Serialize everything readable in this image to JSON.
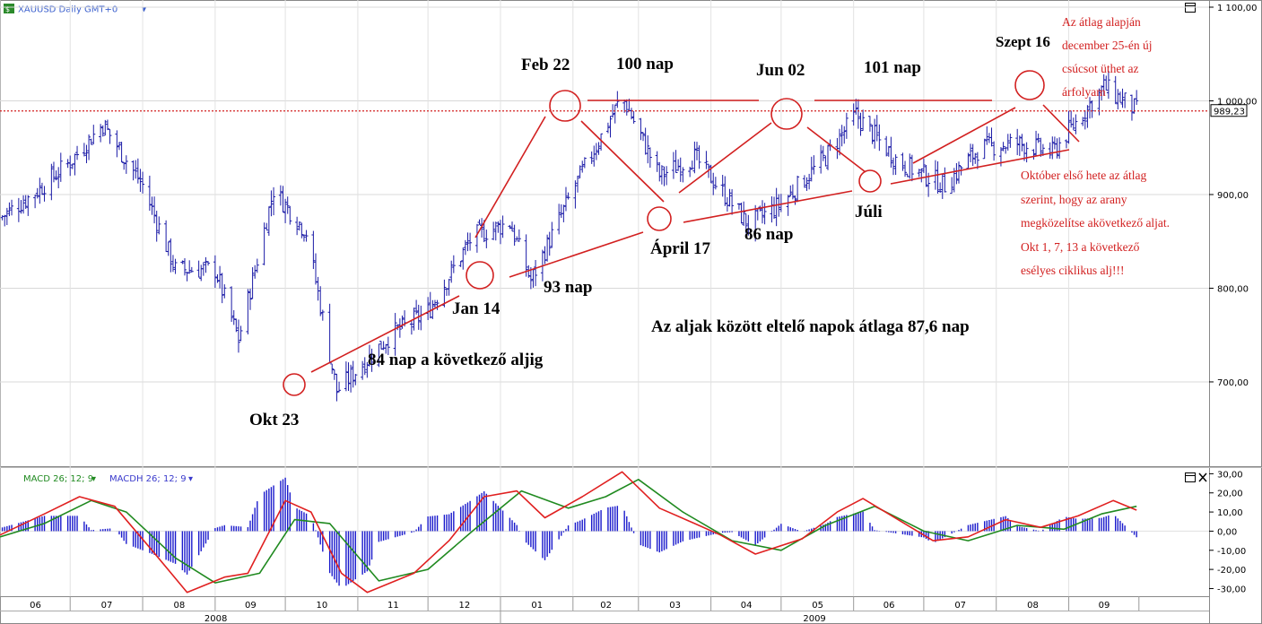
{
  "window": {
    "title": "XAUUSD Daily GMT+0",
    "chevron": "▾",
    "icon": "forex-symbol-icon",
    "maximize_icon": "maximize-icon",
    "close_icon": "close-icon"
  },
  "chart_data": [
    {
      "type": "ohlc",
      "title": "XAUUSD Daily GMT+0",
      "xlabel": "",
      "ylabel": "",
      "ylim": [
        610,
        1100
      ],
      "y_ticks": [
        "1 100,00",
        "1 000,00",
        "900,00",
        "800,00",
        "700,00"
      ],
      "y_tick_values": [
        1100,
        1000,
        900,
        800,
        700
      ],
      "current_price": 989.23,
      "current_price_label": "989,23",
      "x_range": [
        "2008-06-01",
        "2009-10-31"
      ],
      "grid": true,
      "price_path": [
        {
          "date": "2008-06-01",
          "close": 875
        },
        {
          "date": "2008-06-15",
          "close": 900
        },
        {
          "date": "2008-07-01",
          "close": 935
        },
        {
          "date": "2008-07-15",
          "close": 975
        },
        {
          "date": "2008-08-01",
          "close": 910
        },
        {
          "date": "2008-08-15",
          "close": 820
        },
        {
          "date": "2008-09-01",
          "close": 820
        },
        {
          "date": "2008-09-11",
          "close": 745
        },
        {
          "date": "2008-09-26",
          "close": 905
        },
        {
          "date": "2008-10-10",
          "close": 860
        },
        {
          "date": "2008-10-23",
          "close": 690
        },
        {
          "date": "2008-11-15",
          "close": 750
        },
        {
          "date": "2008-12-01",
          "close": 775
        },
        {
          "date": "2008-12-20",
          "close": 855
        },
        {
          "date": "2009-01-05",
          "close": 870
        },
        {
          "date": "2009-01-14",
          "close": 808
        },
        {
          "date": "2009-02-01",
          "close": 905
        },
        {
          "date": "2009-02-22",
          "close": 1005
        },
        {
          "date": "2009-03-10",
          "close": 920
        },
        {
          "date": "2009-03-25",
          "close": 940
        },
        {
          "date": "2009-04-17",
          "close": 868
        },
        {
          "date": "2009-05-01",
          "close": 890
        },
        {
          "date": "2009-05-20",
          "close": 940
        },
        {
          "date": "2009-06-02",
          "close": 985
        },
        {
          "date": "2009-06-20",
          "close": 935
        },
        {
          "date": "2009-07-10",
          "close": 910
        },
        {
          "date": "2009-07-25",
          "close": 950
        },
        {
          "date": "2009-08-10",
          "close": 955
        },
        {
          "date": "2009-08-25",
          "close": 945
        },
        {
          "date": "2009-09-16",
          "close": 1015
        },
        {
          "date": "2009-09-30",
          "close": 990
        }
      ],
      "cycle_lows": [
        {
          "date": "2008-10-23",
          "price": 690
        },
        {
          "date": "2009-01-14",
          "price": 808
        },
        {
          "date": "2009-04-17",
          "price": 868
        },
        {
          "date": "2009-07-10",
          "price": 910
        }
      ],
      "cycle_highs": [
        {
          "date": "2009-02-22",
          "price": 1005
        },
        {
          "date": "2009-06-02",
          "price": 985
        },
        {
          "date": "2009-09-16",
          "price": 1015
        }
      ],
      "annotations": {
        "okt23": "Okt 23",
        "jan14": "Jan 14",
        "feb22": "Feb 22",
        "april17": "Ápril 17",
        "jun02": "Jun 02",
        "juli": "Júli",
        "szept16": "Szept 16",
        "nap84": "84 nap a következő aljig",
        "nap93": "93 nap",
        "nap100": "100 nap",
        "nap86": "86 nap",
        "nap101": "101 nap",
        "atlag": "Az aljak között eltelő napok átlaga 87,6 nap",
        "note_top": [
          "Az átlag alapján",
          "december 25-én új",
          "csúcsot üthet az",
          "árfolyam"
        ],
        "note_bottom": [
          "Október első hete az átlag",
          "szerint, hogy az arany",
          "megközelítse  akövetkező aljat.",
          "Okt 1, 7, 13 a következő",
          "esélyes ciklikus alj!!!"
        ]
      }
    },
    {
      "type": "macd",
      "legend": {
        "macd": "MACD 26; 12; 9",
        "macdh": "MACDH 26; 12; 9"
      },
      "ylim": [
        -34,
        33
      ],
      "y_ticks": [
        "30,00",
        "20,00",
        "10,00",
        "0,00",
        "-10,00",
        "-20,00",
        "-30,00"
      ],
      "y_tick_values": [
        30,
        20,
        10,
        0,
        -10,
        -20,
        -30
      ],
      "macd_path": [
        {
          "date": "2008-06-01",
          "value": -2
        },
        {
          "date": "2008-06-20",
          "value": 9
        },
        {
          "date": "2008-07-05",
          "value": 18
        },
        {
          "date": "2008-07-20",
          "value": 13
        },
        {
          "date": "2008-08-05",
          "value": -10
        },
        {
          "date": "2008-08-20",
          "value": -32
        },
        {
          "date": "2008-09-05",
          "value": -24
        },
        {
          "date": "2008-09-15",
          "value": -22
        },
        {
          "date": "2008-10-01",
          "value": 16
        },
        {
          "date": "2008-10-12",
          "value": 10
        },
        {
          "date": "2008-10-25",
          "value": -22
        },
        {
          "date": "2008-11-05",
          "value": -32
        },
        {
          "date": "2008-11-25",
          "value": -22
        },
        {
          "date": "2008-12-10",
          "value": -5
        },
        {
          "date": "2008-12-25",
          "value": 18
        },
        {
          "date": "2009-01-08",
          "value": 21
        },
        {
          "date": "2009-01-20",
          "value": 7
        },
        {
          "date": "2009-02-05",
          "value": 18
        },
        {
          "date": "2009-02-22",
          "value": 31
        },
        {
          "date": "2009-03-10",
          "value": 12
        },
        {
          "date": "2009-03-25",
          "value": 4
        },
        {
          "date": "2009-04-05",
          "value": -2
        },
        {
          "date": "2009-04-20",
          "value": -12
        },
        {
          "date": "2009-05-10",
          "value": -4
        },
        {
          "date": "2009-05-25",
          "value": 10
        },
        {
          "date": "2009-06-05",
          "value": 17
        },
        {
          "date": "2009-06-20",
          "value": 6
        },
        {
          "date": "2009-07-05",
          "value": -5
        },
        {
          "date": "2009-07-20",
          "value": -3
        },
        {
          "date": "2009-08-05",
          "value": 6
        },
        {
          "date": "2009-08-20",
          "value": 2
        },
        {
          "date": "2009-09-05",
          "value": 8
        },
        {
          "date": "2009-09-20",
          "value": 16
        },
        {
          "date": "2009-09-30",
          "value": 11
        }
      ],
      "signal_path": [
        {
          "date": "2008-06-01",
          "value": -3
        },
        {
          "date": "2008-06-20",
          "value": 4
        },
        {
          "date": "2008-07-10",
          "value": 16
        },
        {
          "date": "2008-07-25",
          "value": 10
        },
        {
          "date": "2008-08-15",
          "value": -14
        },
        {
          "date": "2008-09-01",
          "value": -27
        },
        {
          "date": "2008-09-20",
          "value": -22
        },
        {
          "date": "2008-10-05",
          "value": 6
        },
        {
          "date": "2008-10-20",
          "value": 4
        },
        {
          "date": "2008-11-10",
          "value": -26
        },
        {
          "date": "2008-12-01",
          "value": -20
        },
        {
          "date": "2008-12-20",
          "value": 0
        },
        {
          "date": "2009-01-10",
          "value": 21
        },
        {
          "date": "2009-01-30",
          "value": 12
        },
        {
          "date": "2009-02-15",
          "value": 18
        },
        {
          "date": "2009-03-01",
          "value": 27
        },
        {
          "date": "2009-03-20",
          "value": 10
        },
        {
          "date": "2009-04-10",
          "value": -5
        },
        {
          "date": "2009-05-01",
          "value": -10
        },
        {
          "date": "2009-05-20",
          "value": 3
        },
        {
          "date": "2009-06-10",
          "value": 13
        },
        {
          "date": "2009-07-01",
          "value": 0
        },
        {
          "date": "2009-07-20",
          "value": -5
        },
        {
          "date": "2009-08-10",
          "value": 3
        },
        {
          "date": "2009-08-30",
          "value": 1
        },
        {
          "date": "2009-09-15",
          "value": 9
        },
        {
          "date": "2009-09-30",
          "value": 13
        }
      ]
    }
  ],
  "x_axis": {
    "months": [
      {
        "label": "06",
        "date": "2008-06-01"
      },
      {
        "label": "07",
        "date": "2008-07-01"
      },
      {
        "label": "08",
        "date": "2008-08-01"
      },
      {
        "label": "09",
        "date": "2008-09-01"
      },
      {
        "label": "10",
        "date": "2008-10-01"
      },
      {
        "label": "11",
        "date": "2008-11-01"
      },
      {
        "label": "12",
        "date": "2008-12-01"
      },
      {
        "label": "01",
        "date": "2009-01-01"
      },
      {
        "label": "02",
        "date": "2009-02-01"
      },
      {
        "label": "03",
        "date": "2009-03-01"
      },
      {
        "label": "04",
        "date": "2009-04-01"
      },
      {
        "label": "05",
        "date": "2009-05-01"
      },
      {
        "label": "06",
        "date": "2009-06-01"
      },
      {
        "label": "07",
        "date": "2009-07-01"
      },
      {
        "label": "08",
        "date": "2009-08-01"
      },
      {
        "label": "09",
        "date": "2009-09-01"
      }
    ],
    "years": [
      {
        "label": "2008",
        "date": "2008-09-01"
      },
      {
        "label": "2009",
        "date": "2009-05-15"
      }
    ]
  },
  "colors": {
    "bars": "#1a1aa6",
    "annotation_red": "#d22020",
    "macd_red": "#e02020",
    "signal_green": "#208a20",
    "histogram": "#1a1acc",
    "axis_text": "#000000"
  }
}
